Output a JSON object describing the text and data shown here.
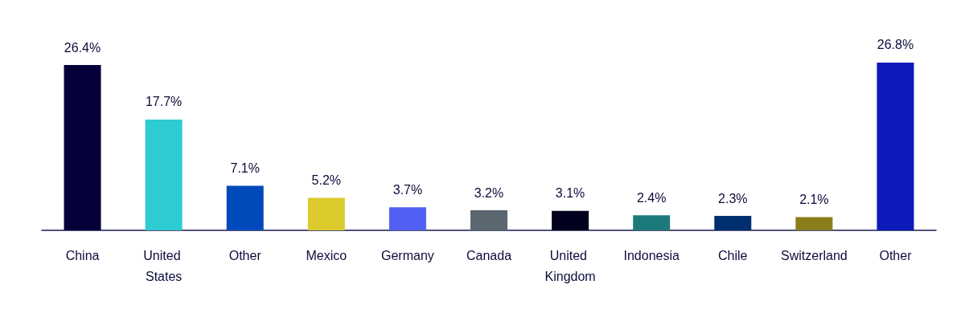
{
  "chart_data": {
    "type": "bar",
    "categories": [
      "China",
      "United States",
      "Other",
      "Mexico",
      "Germany",
      "Canada",
      "United Kingdom",
      "Indonesia",
      "Chile",
      "Switzerland",
      "Other"
    ],
    "values": [
      26.4,
      17.7,
      7.1,
      5.2,
      3.7,
      3.2,
      3.1,
      2.4,
      2.3,
      2.1,
      26.8
    ],
    "value_labels": [
      "26.4%",
      "17.7%",
      "7.1%",
      "5.2%",
      "3.7%",
      "3.2%",
      "3.1%",
      "2.4%",
      "2.3%",
      "2.1%",
      "26.8%"
    ],
    "colors": [
      "#06003a",
      "#2ecbd2",
      "#004abb",
      "#dccb2d",
      "#5160f2",
      "#5a6670",
      "#02021f",
      "#1d7a7a",
      "#002f70",
      "#8b7e1a",
      "#0b1ab9"
    ],
    "grid": false
  }
}
